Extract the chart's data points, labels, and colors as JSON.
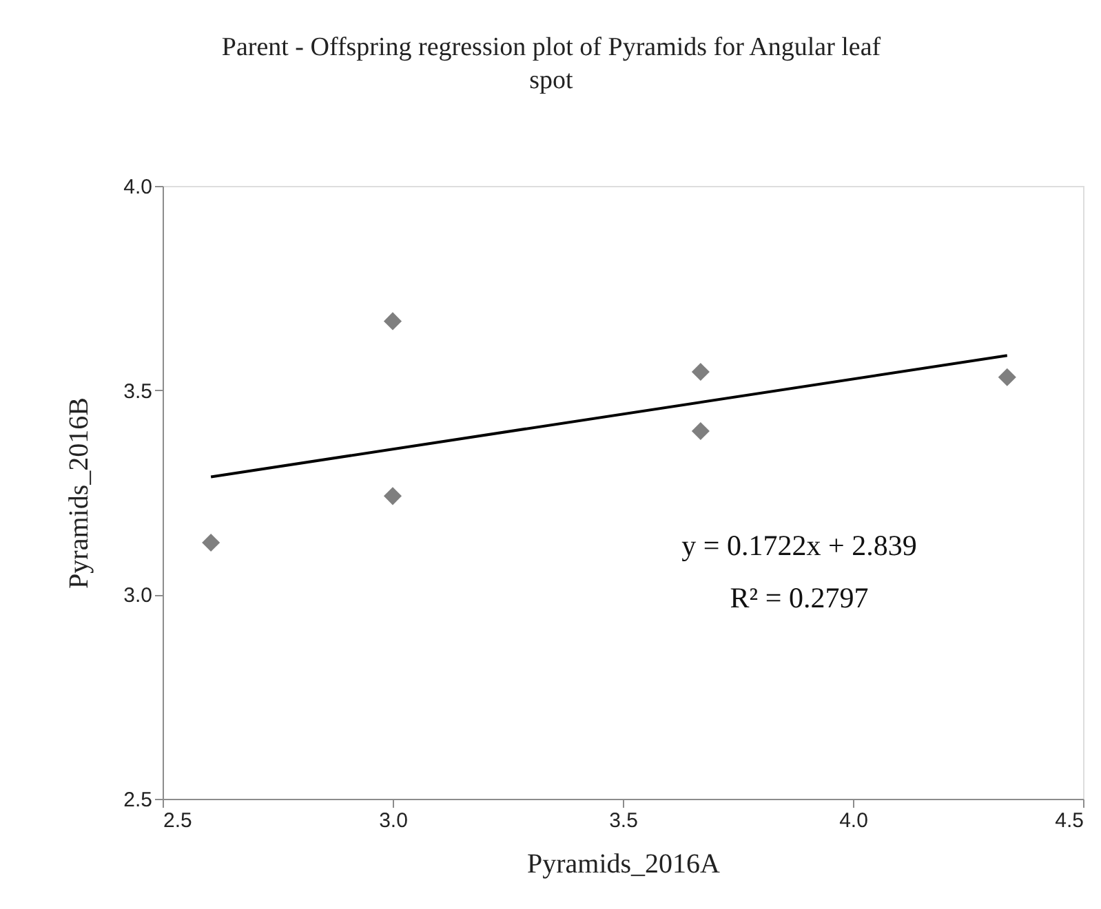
{
  "chart_data": {
    "type": "scatter",
    "title": "Parent  - Offspring regression plot of Pyramids for Angular leaf spot",
    "xlabel": "Pyramids_2016A",
    "ylabel": "Pyramids_2016B",
    "x": [
      2.605,
      3.0,
      3.0,
      3.669,
      3.669,
      4.335
    ],
    "series": [
      {
        "color": "#7f7f7f",
        "marker": "diamond",
        "values": [
          3.127,
          3.669,
          3.241,
          3.545,
          3.4,
          3.532
        ]
      },
      {
        "type": "line",
        "color": "#000000",
        "x": [
          2.605,
          4.335
        ],
        "values": [
          3.288,
          3.585
        ],
        "line_style": "solid"
      }
    ],
    "annotations": [
      "y = 0.1722x + 2.839",
      "R² = 0.2797"
    ],
    "xlim": [
      2.5,
      4.5
    ],
    "xticks": [
      {
        "value": 2.5,
        "label": "2.5"
      },
      {
        "value": 3.0,
        "label": "3.0"
      },
      {
        "value": 3.5,
        "label": "3.5"
      },
      {
        "value": 4.0,
        "label": "4.0"
      },
      {
        "value": 4.5,
        "label": "4.5"
      }
    ],
    "ylim": [
      2.5,
      4.0
    ],
    "yticks": [
      {
        "value": 2.5,
        "label": "2.5"
      },
      {
        "value": 3.0,
        "label": "3.0"
      },
      {
        "value": 3.5,
        "label": "3.5"
      },
      {
        "value": 4.0,
        "label": "4.0"
      }
    ],
    "grid": false
  }
}
